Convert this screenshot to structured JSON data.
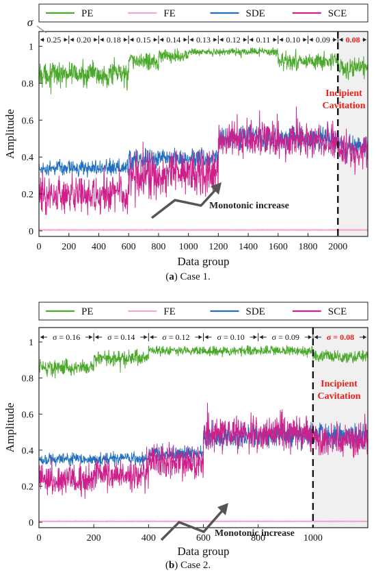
{
  "legend": [
    {
      "name": "PE",
      "color": "#4aa82a"
    },
    {
      "name": "FE",
      "color": "#f3a6d4"
    },
    {
      "name": "SDE",
      "color": "#1f6fc0"
    },
    {
      "name": "SCE",
      "color": "#cf1f8b"
    }
  ],
  "colors": {
    "cavitation_text": "#e8201c",
    "shade": "#f0f0f0"
  },
  "chart_data": [
    {
      "id": "a",
      "type": "line",
      "caption_letter": "a",
      "caption_text": "Case 1.",
      "xlabel": "Data group",
      "ylabel": "Amplitude",
      "xlim": [
        0,
        2200
      ],
      "ylim": [
        -0.03,
        1.08
      ],
      "xticks": [
        0,
        200,
        400,
        600,
        800,
        1000,
        1200,
        1400,
        1600,
        1800,
        2000
      ],
      "yticks": [
        0,
        0.2,
        0.4,
        0.6,
        0.8,
        1
      ],
      "sigma_symbol": "σ",
      "sigma_segments": [
        {
          "label": "0.25",
          "start": 0,
          "end": 200
        },
        {
          "label": "0.20",
          "start": 200,
          "end": 400
        },
        {
          "label": "0.18",
          "start": 400,
          "end": 600
        },
        {
          "label": "0.15",
          "start": 600,
          "end": 800
        },
        {
          "label": "0.14",
          "start": 800,
          "end": 1000
        },
        {
          "label": "0.13",
          "start": 1000,
          "end": 1200
        },
        {
          "label": "0.12",
          "start": 1200,
          "end": 1400
        },
        {
          "label": "0.11",
          "start": 1400,
          "end": 1600
        },
        {
          "label": "0.10",
          "start": 1600,
          "end": 1800
        },
        {
          "label": "0.09",
          "start": 1800,
          "end": 2000
        },
        {
          "label": "0.08",
          "start": 2000,
          "end": 2200,
          "highlight": true
        }
      ],
      "cavitation_x": 2000,
      "cavitation_label": [
        "Incipient",
        "Cavitation"
      ],
      "annotation": "Monotonic increase",
      "series": [
        {
          "name": "PE",
          "color": "#4aa82a",
          "segments": [
            {
              "start": 0,
              "end": 600,
              "mean": 0.85,
              "noise": 0.05
            },
            {
              "start": 600,
              "end": 800,
              "mean": 0.92,
              "noise": 0.035
            },
            {
              "start": 800,
              "end": 1000,
              "mean": 0.95,
              "noise": 0.025
            },
            {
              "start": 1000,
              "end": 1600,
              "mean": 0.97,
              "noise": 0.015
            },
            {
              "start": 1600,
              "end": 2000,
              "mean": 0.92,
              "noise": 0.035
            },
            {
              "start": 2000,
              "end": 2200,
              "mean": 0.88,
              "noise": 0.04
            }
          ]
        },
        {
          "name": "FE",
          "color": "#f3a6d4",
          "segments": [
            {
              "start": 0,
              "end": 2200,
              "mean": 0.005,
              "noise": 0.002
            }
          ]
        },
        {
          "name": "SDE",
          "color": "#1f6fc0",
          "segments": [
            {
              "start": 0,
              "end": 600,
              "mean": 0.34,
              "noise": 0.03
            },
            {
              "start": 600,
              "end": 1200,
              "mean": 0.39,
              "noise": 0.04
            },
            {
              "start": 1200,
              "end": 2000,
              "mean": 0.5,
              "noise": 0.05
            },
            {
              "start": 2000,
              "end": 2200,
              "mean": 0.45,
              "noise": 0.05
            }
          ]
        },
        {
          "name": "SCE",
          "color": "#cf1f8b",
          "segments": [
            {
              "start": 0,
              "end": 600,
              "mean": 0.19,
              "noise": 0.07
            },
            {
              "start": 600,
              "end": 1200,
              "mean": 0.3,
              "noise": 0.09
            },
            {
              "start": 1200,
              "end": 2000,
              "mean": 0.49,
              "noise": 0.07
            },
            {
              "start": 2000,
              "end": 2200,
              "mean": 0.43,
              "noise": 0.07
            }
          ]
        }
      ]
    },
    {
      "id": "b",
      "type": "line",
      "caption_letter": "b",
      "caption_text": "Case 2.",
      "xlabel": "Data group",
      "ylabel": "Amplitude",
      "xlim": [
        0,
        1200
      ],
      "ylim": [
        -0.03,
        1.08
      ],
      "xticks": [
        0,
        200,
        400,
        600,
        800,
        1000
      ],
      "yticks": [
        0,
        0.2,
        0.4,
        0.6,
        0.8,
        1
      ],
      "sigma_symbol": "σ",
      "sigma_segments": [
        {
          "label": "0.16",
          "start": 0,
          "end": 200
        },
        {
          "label": "0.14",
          "start": 200,
          "end": 400
        },
        {
          "label": "0.12",
          "start": 400,
          "end": 600
        },
        {
          "label": "0.10",
          "start": 600,
          "end": 800
        },
        {
          "label": "0.09",
          "start": 800,
          "end": 1000
        },
        {
          "label": "0.08",
          "start": 1000,
          "end": 1200,
          "highlight": true
        }
      ],
      "cavitation_x": 1000,
      "cavitation_label": [
        "Incipient",
        "Cavitation"
      ],
      "annotation": "Monotonic increase",
      "series": [
        {
          "name": "PE",
          "color": "#4aa82a",
          "segments": [
            {
              "start": 0,
              "end": 200,
              "mean": 0.86,
              "noise": 0.03
            },
            {
              "start": 200,
              "end": 400,
              "mean": 0.91,
              "noise": 0.03
            },
            {
              "start": 400,
              "end": 1000,
              "mean": 0.95,
              "noise": 0.02
            },
            {
              "start": 1000,
              "end": 1200,
              "mean": 0.92,
              "noise": 0.025
            }
          ]
        },
        {
          "name": "FE",
          "color": "#f3a6d4",
          "segments": [
            {
              "start": 0,
              "end": 1200,
              "mean": 0.005,
              "noise": 0.002
            }
          ]
        },
        {
          "name": "SDE",
          "color": "#1f6fc0",
          "segments": [
            {
              "start": 0,
              "end": 400,
              "mean": 0.35,
              "noise": 0.025
            },
            {
              "start": 400,
              "end": 600,
              "mean": 0.38,
              "noise": 0.03
            },
            {
              "start": 600,
              "end": 1200,
              "mean": 0.48,
              "noise": 0.05
            }
          ]
        },
        {
          "name": "SCE",
          "color": "#cf1f8b",
          "segments": [
            {
              "start": 0,
              "end": 200,
              "mean": 0.23,
              "noise": 0.06
            },
            {
              "start": 200,
              "end": 400,
              "mean": 0.26,
              "noise": 0.06
            },
            {
              "start": 400,
              "end": 600,
              "mean": 0.33,
              "noise": 0.07
            },
            {
              "start": 600,
              "end": 1000,
              "mean": 0.49,
              "noise": 0.07
            },
            {
              "start": 1000,
              "end": 1200,
              "mean": 0.46,
              "noise": 0.06
            }
          ]
        }
      ]
    }
  ]
}
